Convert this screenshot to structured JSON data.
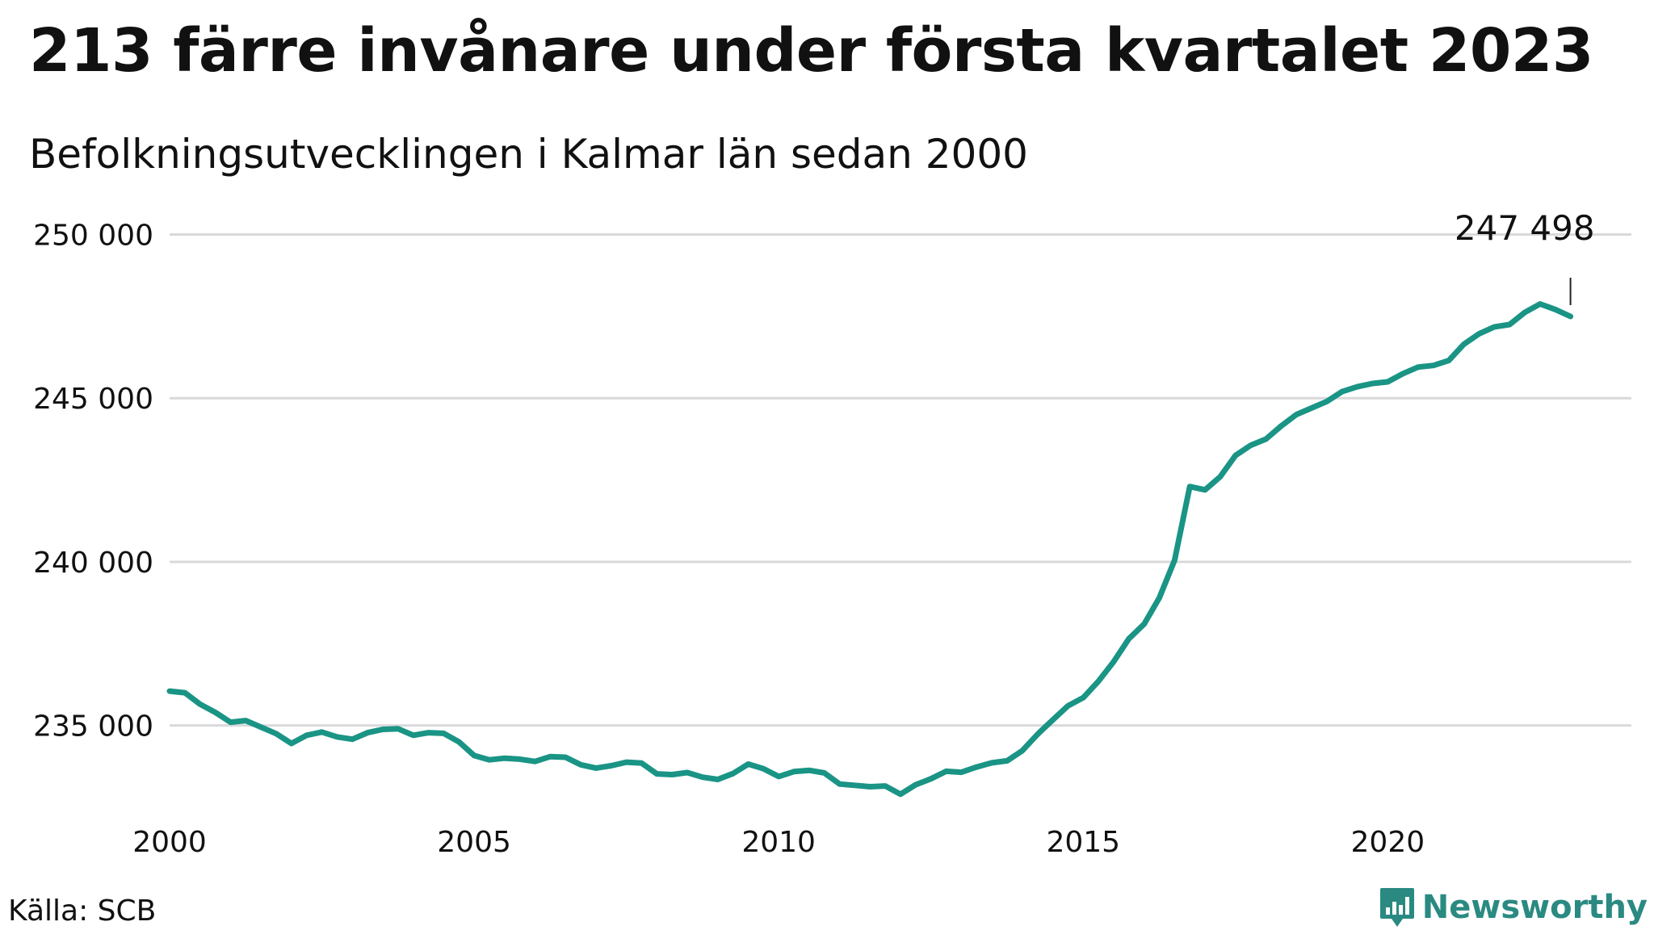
{
  "title": "213 färre invånare under första kvartalet 2023",
  "subtitle": "Befolkningsutvecklingen i Kalmar län sedan 2000",
  "source": "Källa: SCB",
  "brand": {
    "name": "Newsworthy",
    "icon": "newsworthy-logo-icon",
    "color": "#2a8a82"
  },
  "chart_data": {
    "type": "line",
    "title": "213 färre invånare under första kvartalet 2023",
    "subtitle": "Befolkningsutvecklingen i Kalmar län sedan 2000",
    "xlabel": "",
    "ylabel": "",
    "xlim": [
      2000,
      2024
    ],
    "ylim": [
      232500,
      251000
    ],
    "x_ticks": [
      {
        "value": 2000,
        "label": "2000"
      },
      {
        "value": 2005,
        "label": "2005"
      },
      {
        "value": 2010,
        "label": "2010"
      },
      {
        "value": 2015,
        "label": "2015"
      },
      {
        "value": 2020,
        "label": "2020"
      }
    ],
    "y_ticks": [
      {
        "value": 235000,
        "label": "235 000"
      },
      {
        "value": 240000,
        "label": "240 000"
      },
      {
        "value": 245000,
        "label": "245 000"
      },
      {
        "value": 250000,
        "label": "250 000"
      }
    ],
    "grid": true,
    "line_color": "#1a9485",
    "annotation": {
      "x": 2023.0,
      "y": 247498,
      "label": "247 498"
    },
    "series": [
      {
        "values": [
          [
            2000.0,
            236050
          ],
          [
            2000.25,
            236000
          ],
          [
            2000.5,
            235650
          ],
          [
            2000.75,
            235400
          ],
          [
            2001.0,
            235100
          ],
          [
            2001.25,
            235150
          ],
          [
            2001.5,
            234950
          ],
          [
            2001.75,
            234750
          ],
          [
            2002.0,
            234450
          ],
          [
            2002.25,
            234700
          ],
          [
            2002.5,
            234800
          ],
          [
            2002.75,
            234650
          ],
          [
            2003.0,
            234580
          ],
          [
            2003.25,
            234780
          ],
          [
            2003.5,
            234880
          ],
          [
            2003.75,
            234900
          ],
          [
            2004.0,
            234700
          ],
          [
            2004.25,
            234780
          ],
          [
            2004.5,
            234760
          ],
          [
            2004.75,
            234500
          ],
          [
            2005.0,
            234080
          ],
          [
            2005.25,
            233950
          ],
          [
            2005.5,
            234000
          ],
          [
            2005.75,
            233970
          ],
          [
            2006.0,
            233900
          ],
          [
            2006.25,
            234050
          ],
          [
            2006.5,
            234030
          ],
          [
            2006.75,
            233800
          ],
          [
            2007.0,
            233700
          ],
          [
            2007.25,
            233770
          ],
          [
            2007.5,
            233880
          ],
          [
            2007.75,
            233850
          ],
          [
            2008.0,
            233520
          ],
          [
            2008.25,
            233500
          ],
          [
            2008.5,
            233560
          ],
          [
            2008.75,
            233420
          ],
          [
            2009.0,
            233350
          ],
          [
            2009.25,
            233530
          ],
          [
            2009.5,
            233820
          ],
          [
            2009.75,
            233680
          ],
          [
            2010.0,
            233440
          ],
          [
            2010.25,
            233590
          ],
          [
            2010.5,
            233630
          ],
          [
            2010.75,
            233550
          ],
          [
            2011.0,
            233210
          ],
          [
            2011.25,
            233170
          ],
          [
            2011.5,
            233130
          ],
          [
            2011.75,
            233150
          ],
          [
            2012.0,
            232900
          ],
          [
            2012.25,
            233190
          ],
          [
            2012.5,
            233370
          ],
          [
            2012.75,
            233600
          ],
          [
            2013.0,
            233570
          ],
          [
            2013.25,
            233730
          ],
          [
            2013.5,
            233860
          ],
          [
            2013.75,
            233920
          ],
          [
            2014.0,
            234230
          ],
          [
            2014.25,
            234730
          ],
          [
            2014.5,
            235170
          ],
          [
            2014.75,
            235600
          ],
          [
            2015.0,
            235850
          ],
          [
            2015.25,
            236350
          ],
          [
            2015.5,
            236950
          ],
          [
            2015.75,
            237650
          ],
          [
            2016.0,
            238100
          ],
          [
            2016.25,
            238900
          ],
          [
            2016.5,
            240050
          ],
          [
            2016.75,
            242300
          ],
          [
            2017.0,
            242200
          ],
          [
            2017.25,
            242600
          ],
          [
            2017.5,
            243250
          ],
          [
            2017.75,
            243560
          ],
          [
            2018.0,
            243750
          ],
          [
            2018.25,
            244150
          ],
          [
            2018.5,
            244500
          ],
          [
            2018.75,
            244700
          ],
          [
            2019.0,
            244900
          ],
          [
            2019.25,
            245200
          ],
          [
            2019.5,
            245350
          ],
          [
            2019.75,
            245450
          ],
          [
            2020.0,
            245500
          ],
          [
            2020.25,
            245750
          ],
          [
            2020.5,
            245950
          ],
          [
            2020.75,
            246000
          ],
          [
            2021.0,
            246150
          ],
          [
            2021.25,
            246650
          ],
          [
            2021.5,
            246970
          ],
          [
            2021.75,
            247180
          ],
          [
            2022.0,
            247250
          ],
          [
            2022.25,
            247620
          ],
          [
            2022.5,
            247880
          ],
          [
            2022.75,
            247711
          ],
          [
            2023.0,
            247498
          ]
        ]
      }
    ]
  }
}
